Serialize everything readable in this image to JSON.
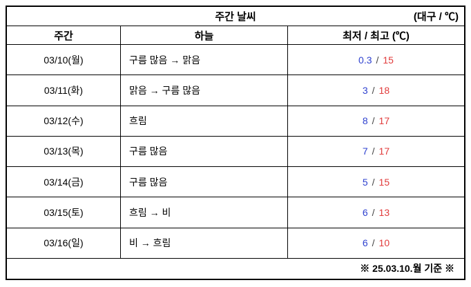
{
  "title": {
    "text": "주간 날씨",
    "unit": "(대구 / ℃)"
  },
  "columns": {
    "week": "주간",
    "sky": "하늘",
    "temp": "최저 / 최고 (℃)"
  },
  "labels": {
    "temp_separator": "/",
    "footnote": "※ 25.03.10.월 기준 ※"
  },
  "colors": {
    "low_temp": "#2e41cf",
    "high_temp": "#e13b3b",
    "border": "#000000"
  },
  "rows": [
    {
      "date": "03/10(월)",
      "sky": "구름 많음 → 맑음",
      "low": "0.3",
      "high": "15"
    },
    {
      "date": "03/11(화)",
      "sky": "맑음 → 구름 많음",
      "low": "3",
      "high": "18"
    },
    {
      "date": "03/12(수)",
      "sky": "흐림",
      "low": "8",
      "high": "17"
    },
    {
      "date": "03/13(목)",
      "sky": "구름 많음",
      "low": "7",
      "high": "17"
    },
    {
      "date": "03/14(금)",
      "sky": "구름 많음",
      "low": "5",
      "high": "15"
    },
    {
      "date": "03/15(토)",
      "sky": "흐림 → 비",
      "low": "6",
      "high": "13"
    },
    {
      "date": "03/16(일)",
      "sky": "비 → 흐림",
      "low": "6",
      "high": "10"
    }
  ]
}
